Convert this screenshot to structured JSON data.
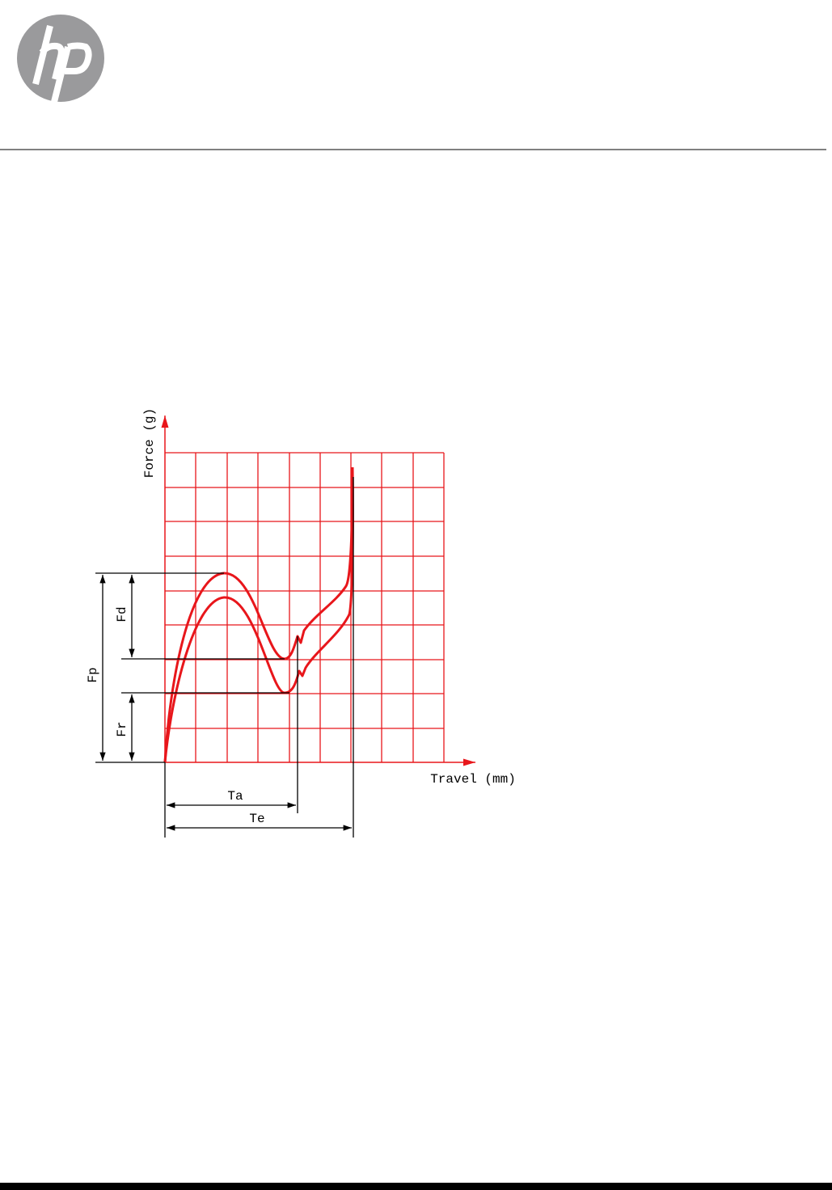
{
  "diagram": {
    "y_axis_label": "Force (g)",
    "x_axis_label": "Travel (mm)",
    "dimensions": {
      "peak_force": "Fp",
      "drop_force": "Fd",
      "return_force": "Fr",
      "actuation_travel": "Ta",
      "total_travel": "Te"
    }
  }
}
